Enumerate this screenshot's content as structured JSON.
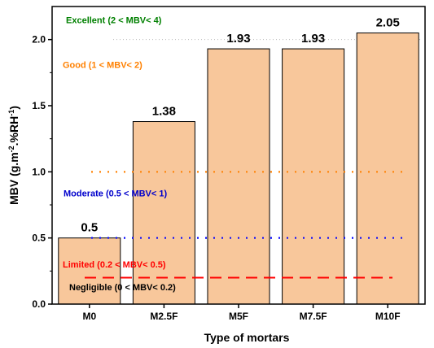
{
  "chart_data": {
    "type": "bar",
    "categories": [
      "M0",
      "M2.5F",
      "M5F",
      "M7.5F",
      "M10F"
    ],
    "values": [
      0.5,
      1.38,
      1.93,
      1.93,
      2.05
    ],
    "value_labels": [
      "0.5",
      "1.38",
      "1.93",
      "1.93",
      "2.05"
    ],
    "xlabel": "Type of mortars",
    "ylabel_parts": {
      "prefix": "MBV (g.m",
      "exp1": "-2",
      "middle": ".%RH",
      "exp2": "-1",
      "suffix": ")"
    },
    "ylim": [
      0,
      2.25
    ],
    "yticks": [
      0.0,
      0.5,
      1.0,
      1.5,
      2.0
    ],
    "ytick_labels": [
      "0.0",
      "0.5",
      "1.0",
      "1.5",
      "2.0"
    ],
    "bar_color": "#F8C79B",
    "bar_stroke": "#000000",
    "thresholds": [
      {
        "value": 0.2,
        "style": "dashed",
        "color": "#FF0000"
      },
      {
        "value": 0.5,
        "style": "dotted",
        "color": "#0000FF"
      },
      {
        "value": 1.0,
        "style": "dotted",
        "color": "#FF8000"
      },
      {
        "value": 2.0,
        "style": "dotted",
        "color": "#BBBBBB"
      }
    ],
    "annotations": [
      {
        "text": "Excellent (2 < MBV< 4)",
        "value": 2.15,
        "color": "#008000"
      },
      {
        "text": "Good (1 < MBV< 2)",
        "value": 1.81,
        "color": "#FF8000"
      },
      {
        "text": "Moderate (0.5 < MBV< 1)",
        "value": 0.84,
        "color": "#0000CC"
      },
      {
        "text": "Limited (0.2 < MBV< 0.5)",
        "value": 0.3,
        "color": "#FF0000"
      },
      {
        "text": "Negligible (0 < MBV< 0.2)",
        "value": 0.13,
        "color": "#000000"
      }
    ]
  }
}
